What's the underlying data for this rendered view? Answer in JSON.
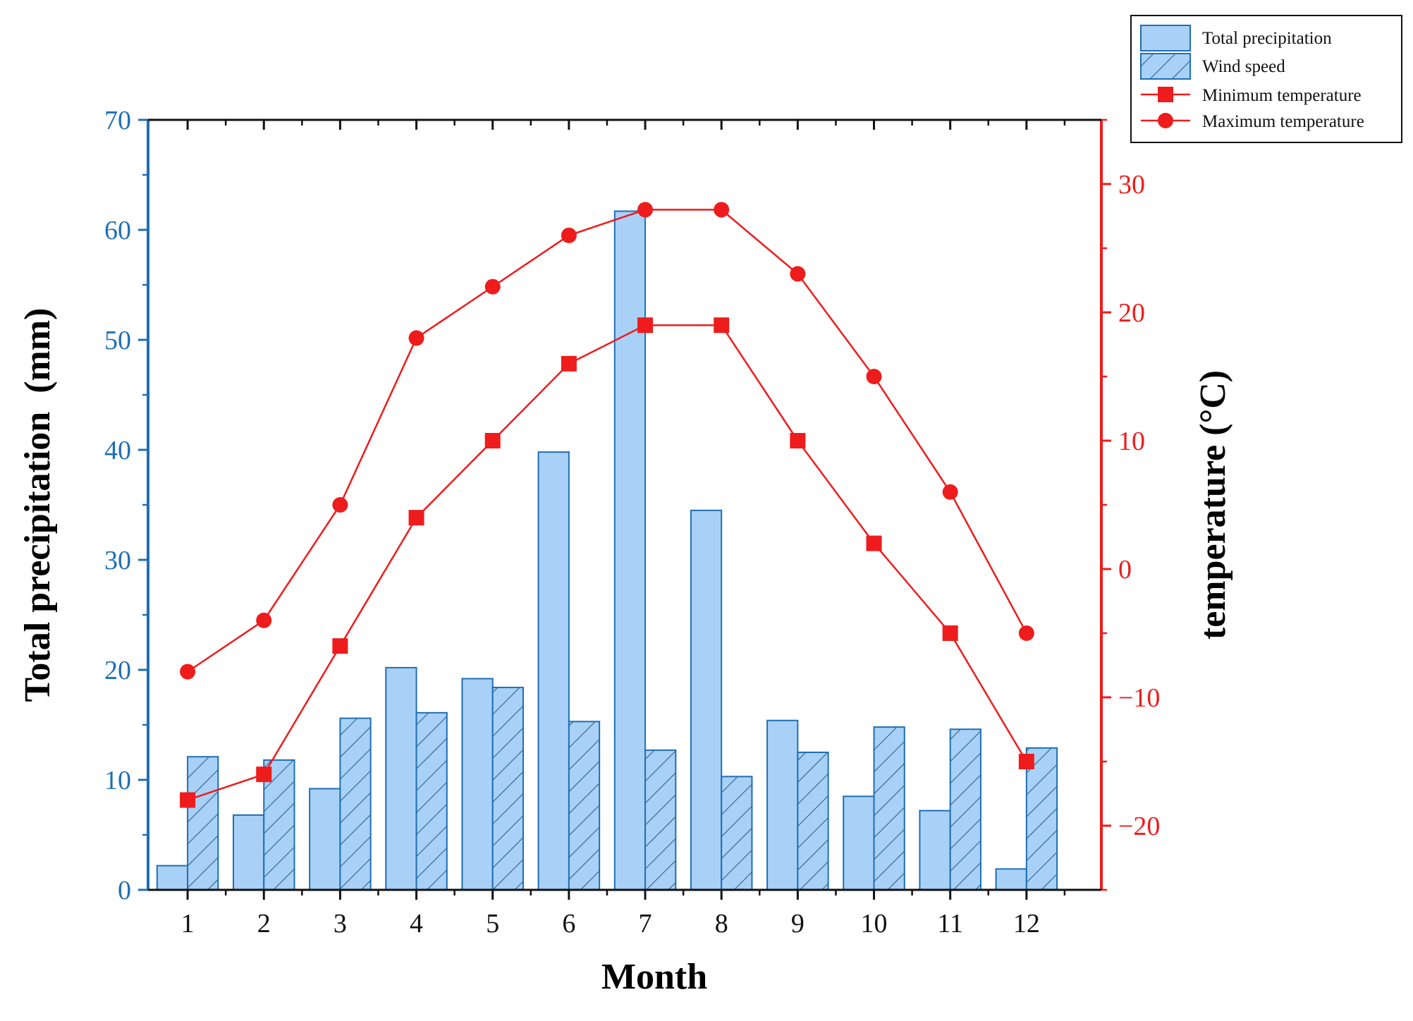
{
  "chart_data": {
    "type": "bar",
    "categories": [
      "1",
      "2",
      "3",
      "4",
      "5",
      "6",
      "7",
      "8",
      "9",
      "10",
      "11",
      "12"
    ],
    "xlabel": "Month",
    "ylabel": "Total precipitation  (mm)",
    "ylabel_right": "temperature (°C)",
    "ylim": [
      0,
      70
    ],
    "ylim_right": [
      -25,
      35
    ],
    "yticks": [
      0,
      10,
      20,
      30,
      40,
      50,
      60,
      70
    ],
    "yticks_right": [
      -20,
      -10,
      0,
      10,
      20,
      30
    ],
    "grid": false,
    "legend_position": "top-right, outside plot",
    "series": [
      {
        "name": "Total precipitation",
        "type": "bar",
        "axis": "left",
        "color": "#a9d1f7",
        "values": [
          2.2,
          6.8,
          9.2,
          20.2,
          19.2,
          39.8,
          61.7,
          34.5,
          15.4,
          8.5,
          7.2,
          1.9
        ]
      },
      {
        "name": "Wind speed",
        "type": "bar",
        "axis": "left",
        "hatch": true,
        "color": "#a9d1f7",
        "values": [
          12.1,
          11.8,
          15.6,
          16.1,
          18.4,
          15.3,
          12.7,
          10.3,
          12.5,
          14.8,
          14.6,
          12.9
        ]
      },
      {
        "name": "Minimum temperature",
        "type": "line",
        "marker": "square",
        "axis": "right",
        "color": "#ee1c1c",
        "values": [
          -18,
          -16,
          -6,
          4,
          10,
          16,
          19,
          19,
          10,
          2,
          -5,
          -15
        ]
      },
      {
        "name": "Maximum temperature",
        "type": "line",
        "marker": "circle",
        "axis": "right",
        "color": "#ee1c1c",
        "values": [
          -8,
          -4,
          5,
          18,
          22,
          26,
          28,
          28,
          23,
          15,
          6,
          -5
        ]
      }
    ]
  }
}
